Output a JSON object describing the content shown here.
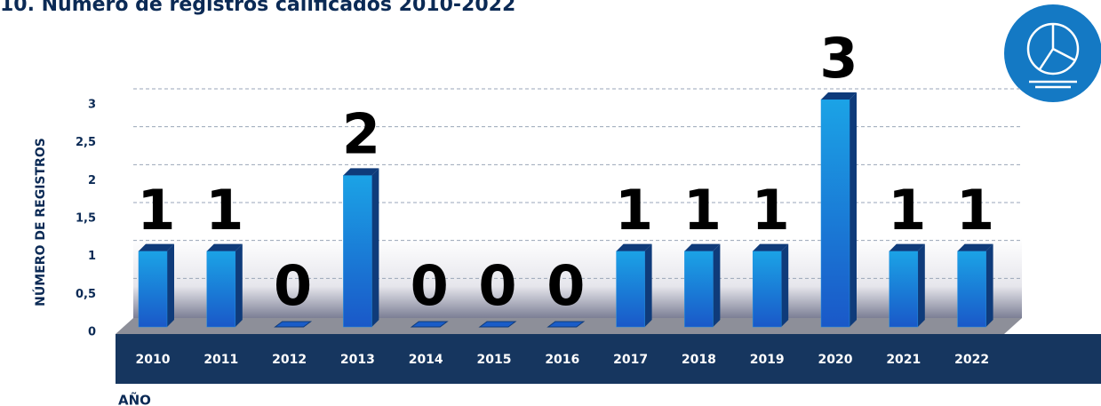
{
  "chart_data": {
    "type": "bar",
    "title": "10. Número de registros calificados 2010-2022",
    "y_label": "NÚMERO DE REGISTROS",
    "x_label": "AÑO",
    "categories": [
      "2010",
      "2011",
      "2012",
      "2013",
      "2014",
      "2015",
      "2016",
      "2017",
      "2018",
      "2019",
      "2020",
      "2021",
      "2022"
    ],
    "values": [
      1,
      1,
      0,
      2,
      0,
      0,
      0,
      1,
      1,
      1,
      3,
      1,
      1
    ],
    "color": "#1e8fe0",
    "ylim": [
      0,
      3
    ],
    "yticks": [
      0,
      {
        "value": 0.5,
        "label": "0,5"
      },
      1,
      {
        "value": 1.5,
        "label": "1,5"
      },
      2,
      {
        "value": 2.5,
        "label": "2,5"
      },
      3
    ],
    "grid": true
  }
}
